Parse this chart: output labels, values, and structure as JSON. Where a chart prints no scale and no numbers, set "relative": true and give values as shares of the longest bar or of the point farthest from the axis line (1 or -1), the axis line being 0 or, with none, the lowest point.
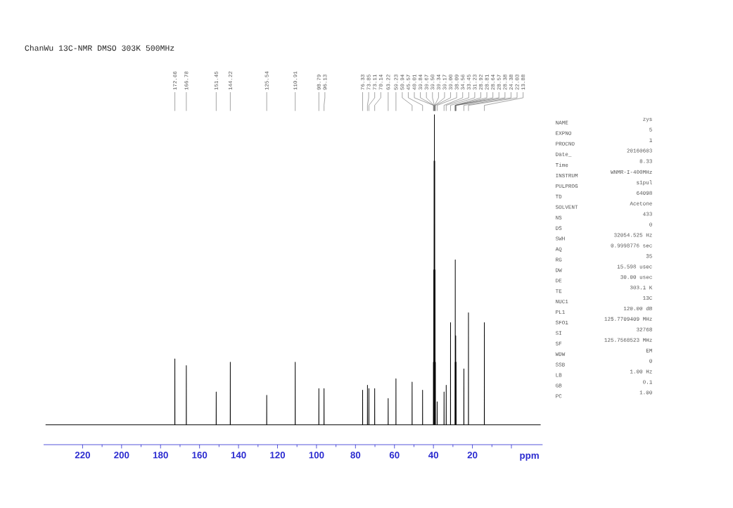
{
  "chart_data": {
    "type": "line",
    "title": "ChanWu 13C-NMR DMSO 303K 500MHz",
    "xlabel": "ppm",
    "relative": true,
    "color": "#000000",
    "xlim": [
      240,
      -16
    ],
    "xticks": [
      220,
      200,
      180,
      160,
      140,
      120,
      100,
      80,
      60,
      40,
      20,
      {
        "value": 0,
        "label": null
      }
    ],
    "x": [
      239,
      172.69,
      172.66,
      172.63,
      166.81,
      166.78,
      166.75,
      151.48,
      151.45,
      151.42,
      144.25,
      144.22,
      144.19,
      125.57,
      125.54,
      125.51,
      110.94,
      110.91,
      110.88,
      98.82,
      98.79,
      98.76,
      96.16,
      96.13,
      96.1,
      76.36,
      76.33,
      76.3,
      73.88,
      73.85,
      73.82,
      73.14,
      73.11,
      73.08,
      70.17,
      70.14,
      70.11,
      63.25,
      63.22,
      63.19,
      59.26,
      59.23,
      59.2,
      50.97,
      50.94,
      50.91,
      45.6,
      45.57,
      45.54,
      40.04,
      40.01,
      39.98,
      39.87,
      39.84,
      39.81,
      39.7,
      39.67,
      39.64,
      39.53,
      39.5,
      39.47,
      39.37,
      39.34,
      39.31,
      39.2,
      39.17,
      39.14,
      39.03,
      39.0,
      38.97,
      38.12,
      38.09,
      38.06,
      34.59,
      34.56,
      34.53,
      33.48,
      33.45,
      33.42,
      31.26,
      31.23,
      31.2,
      28.95,
      28.92,
      28.89,
      28.84,
      28.81,
      28.78,
      28.67,
      28.64,
      28.61,
      28.6,
      28.57,
      28.54,
      28.41,
      28.38,
      28.35,
      24.41,
      24.38,
      24.35,
      22.06,
      22.03,
      22.0,
      13.91,
      13.88,
      13.85,
      -15
    ],
    "values": [
      0.06,
      0.06,
      0.26,
      0.06,
      0.06,
      0.24,
      0.06,
      0.06,
      0.16,
      0.06,
      0.06,
      0.25,
      0.06,
      0.06,
      0.15,
      0.06,
      0.06,
      0.25,
      0.06,
      0.06,
      0.17,
      0.06,
      0.06,
      0.17,
      0.06,
      0.06,
      0.165,
      0.06,
      0.06,
      0.18,
      0.06,
      0.06,
      0.17,
      0.06,
      0.06,
      0.17,
      0.06,
      0.06,
      0.14,
      0.06,
      0.06,
      0.2,
      0.06,
      0.06,
      0.19,
      0.06,
      0.06,
      0.165,
      0.06,
      0.06,
      0.25,
      0.06,
      0.06,
      0.53,
      0.06,
      0.06,
      0.86,
      0.06,
      0.06,
      1,
      0.06,
      0.06,
      0.86,
      0.06,
      0.06,
      0.53,
      0.06,
      0.06,
      0.25,
      0.06,
      0.06,
      0.13,
      0.06,
      0.06,
      0.16,
      0.06,
      0.06,
      0.18,
      0.06,
      0.06,
      0.37,
      0.06,
      0.06,
      0.25,
      0.06,
      0.06,
      0.56,
      0.06,
      0.06,
      0.33,
      0.06,
      0.06,
      0.33,
      0.06,
      0.06,
      0.25,
      0.06,
      0.06,
      0.23,
      0.06,
      0.06,
      0.4,
      0.06,
      0.06,
      0.37,
      0.06,
      0.06
    ],
    "annotations": [
      {
        "text": "172.66",
        "x": 172.66
      },
      {
        "text": "166.78",
        "x": 166.78
      },
      {
        "text": "151.45",
        "x": 151.45
      },
      {
        "text": "144.22",
        "x": 144.22
      },
      {
        "text": "125.54",
        "x": 125.54
      },
      {
        "text": "110.91",
        "x": 110.91
      },
      {
        "text": "98.79",
        "x": 98.79
      },
      {
        "text": "96.13",
        "x": 96.13
      },
      {
        "text": "76.33",
        "x": 76.33
      },
      {
        "text": "73.85",
        "x": 73.85
      },
      {
        "text": "73.11",
        "x": 73.11
      },
      {
        "text": "70.14",
        "x": 70.14
      },
      {
        "text": "63.22",
        "x": 63.22
      },
      {
        "text": "59.23",
        "x": 59.23
      },
      {
        "text": "50.94",
        "x": 50.94
      },
      {
        "text": "45.57",
        "x": 45.57
      },
      {
        "text": "40.01",
        "x": 40.01
      },
      {
        "text": "39.84",
        "x": 39.84
      },
      {
        "text": "39.67",
        "x": 39.67
      },
      {
        "text": "39.50",
        "x": 39.5
      },
      {
        "text": "39.34",
        "x": 39.34
      },
      {
        "text": "39.17",
        "x": 39.17
      },
      {
        "text": "39.00",
        "x": 39.0
      },
      {
        "text": "38.09",
        "x": 38.09
      },
      {
        "text": "34.56",
        "x": 34.56
      },
      {
        "text": "33.45",
        "x": 33.45
      },
      {
        "text": "31.23",
        "x": 31.23
      },
      {
        "text": "28.92",
        "x": 28.92
      },
      {
        "text": "28.81",
        "x": 28.81
      },
      {
        "text": "28.64",
        "x": 28.64
      },
      {
        "text": "28.57",
        "x": 28.57
      },
      {
        "text": "28.38",
        "x": 28.38
      },
      {
        "text": "24.38",
        "x": 24.38
      },
      {
        "text": "22.03",
        "x": 22.03
      },
      {
        "text": "13.88",
        "x": 13.88
      },
      "NAME",
      "zys",
      "EXPNO",
      "5",
      "PROCNO",
      "1",
      "Date_",
      "20160603",
      "Time",
      "8.33",
      "INSTRUM",
      "WNMR-I-400MHz",
      "PULPROG",
      "s1pul",
      "TD",
      "64098",
      "SOLVENT",
      "Acetone",
      "NS",
      "433",
      "DS",
      "0",
      "SWH",
      "32054.525 Hz",
      "AQ",
      "0.9998776 sec",
      "RG",
      "35",
      "DW",
      "15.598 usec",
      "DE",
      "30.00 usec",
      "TE",
      "303.1 K",
      "NUC1",
      "13C",
      "PL1",
      "120.00 dB",
      "SFO1",
      "125.7709409 MHz",
      "SI",
      "32768",
      "SF",
      "125.7568523 MHz",
      "WDW",
      "EM",
      "SSB",
      "0",
      "LB",
      "1.00 Hz",
      "GB",
      "0.1",
      "PC",
      "1.00"
    ]
  }
}
